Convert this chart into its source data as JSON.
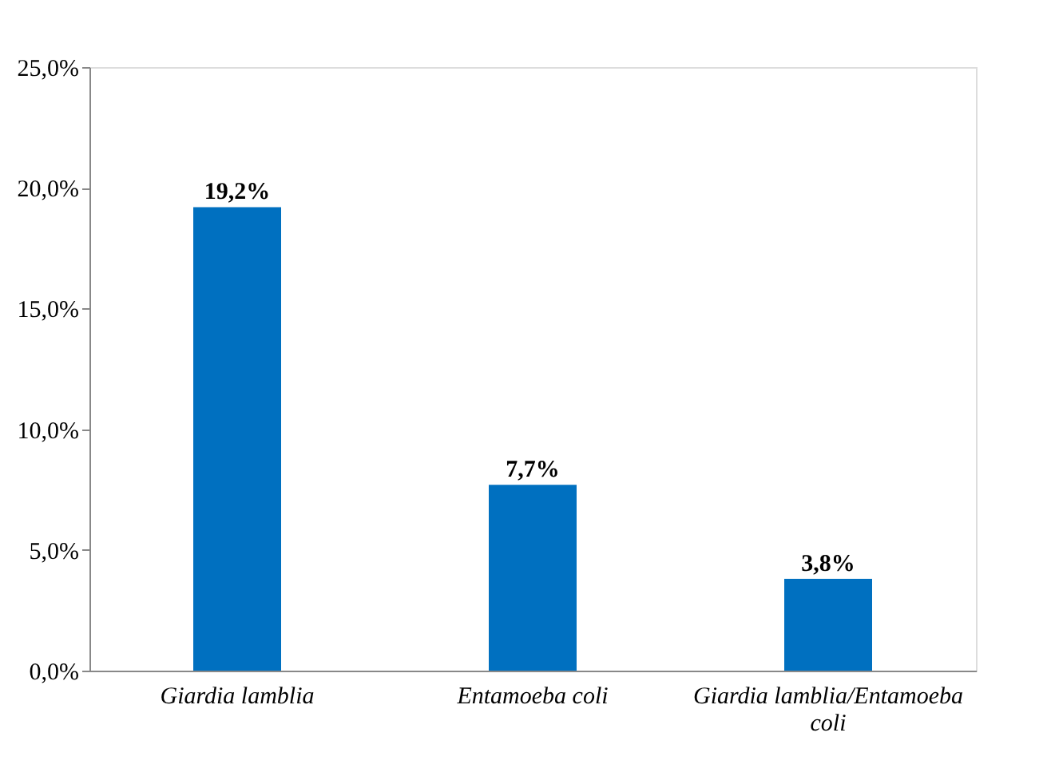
{
  "chart_data": {
    "type": "bar",
    "categories": [
      "Giardia lamblia",
      "Entamoeba coli",
      "Giardia lamblia/Entamoeba coli"
    ],
    "values": [
      19.2,
      7.7,
      3.8
    ],
    "value_labels": [
      "19,2%",
      "7,7%",
      "3,8%"
    ],
    "color": "#0070c0",
    "ylim": [
      0,
      25
    ],
    "yticks": [
      {
        "value": 0,
        "label": "0,0%"
      },
      {
        "value": 5,
        "label": "5,0%"
      },
      {
        "value": 10,
        "label": "10,0%"
      },
      {
        "value": 15,
        "label": "15,0%"
      },
      {
        "value": 20,
        "label": "20,0%"
      },
      {
        "value": 25,
        "label": "25,0%"
      }
    ],
    "grid": false
  }
}
